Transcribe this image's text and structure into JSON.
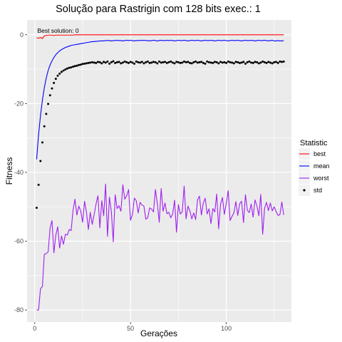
{
  "chart_data": {
    "type": "line",
    "title": "Solução para Rastrigin com 128 bits exec.: 1",
    "xlabel": "Gerações",
    "ylabel": "Fitness",
    "xlim": [
      -4,
      134
    ],
    "ylim": [
      -83.5,
      4.3
    ],
    "x_ticks": [
      0,
      50,
      100
    ],
    "y_ticks": [
      0,
      -20,
      -40,
      -60,
      -80
    ],
    "x_tick_labels": [
      "0",
      "50",
      "100"
    ],
    "y_tick_labels": [
      "0",
      "-20",
      "-40",
      "-60",
      "-80"
    ],
    "grid": true,
    "legend": {
      "title": "Statistic",
      "position": "right"
    },
    "annotation": {
      "text": "Best solution: 0",
      "x": 1,
      "y": 0.6
    },
    "reference_line": {
      "y": 0,
      "style": "dashed",
      "color": "#ffffff"
    },
    "series": [
      {
        "name": "best",
        "color": "#ff0000",
        "kind": "line",
        "x_start": 1,
        "values": [
          -0.9,
          -1.0,
          -0.8,
          -1.1,
          -0.3,
          -0.2,
          -0.1,
          -0.1,
          -0.1,
          -0.2,
          -0.1,
          -0.1,
          -0.1,
          -0.1,
          -0.1,
          -0.1,
          -0.1,
          -0.1,
          -0.1,
          -0.1,
          0,
          0,
          0,
          0,
          0,
          0,
          0,
          0,
          0,
          0,
          0,
          0,
          0,
          0,
          0,
          0,
          0,
          0,
          0,
          0,
          0,
          0,
          0,
          0,
          0,
          0,
          0,
          0,
          0,
          0,
          0,
          0,
          0,
          0,
          0,
          0,
          0,
          0,
          0,
          0,
          0,
          0,
          0,
          0,
          0,
          0,
          0,
          0,
          0,
          0,
          0,
          0,
          0,
          0,
          0,
          0,
          0,
          0,
          0,
          0,
          0,
          0,
          0,
          0,
          0,
          0,
          0,
          0,
          0,
          0,
          0,
          0,
          0,
          0,
          0,
          0,
          0,
          0,
          0,
          0,
          0,
          0,
          0,
          0,
          0,
          0,
          0,
          0,
          0,
          0,
          0,
          0,
          0,
          0,
          0,
          0,
          0,
          0,
          0,
          0,
          0,
          0,
          0,
          0,
          0,
          0,
          0,
          0,
          0,
          0
        ]
      },
      {
        "name": "mean",
        "color": "#0000ff",
        "kind": "line",
        "x_start": 1,
        "values": [
          -36.2,
          -29.1,
          -23.5,
          -19.0,
          -15.4,
          -12.6,
          -10.4,
          -8.8,
          -7.6,
          -6.6,
          -5.8,
          -5.2,
          -4.7,
          -4.3,
          -4.0,
          -3.7,
          -3.5,
          -3.3,
          -3.1,
          -3.0,
          -2.9,
          -2.8,
          -2.7,
          -2.6,
          -2.5,
          -2.4,
          -2.3,
          -2.2,
          -2.1,
          -2.0,
          -2.0,
          -1.9,
          -1.9,
          -1.8,
          -1.8,
          -1.8,
          -1.7,
          -1.7,
          -1.7,
          -1.8,
          -1.7,
          -1.7,
          -1.6,
          -1.7,
          -1.7,
          -1.8,
          -1.7,
          -1.6,
          -1.7,
          -1.6,
          -1.7,
          -1.8,
          -1.7,
          -1.7,
          -1.6,
          -1.7,
          -1.6,
          -1.7,
          -1.7,
          -1.8,
          -1.7,
          -1.6,
          -1.7,
          -1.8,
          -1.7,
          -1.6,
          -1.7,
          -1.7,
          -1.6,
          -1.7,
          -1.6,
          -1.7,
          -1.8,
          -1.7,
          -1.6,
          -1.7,
          -1.7,
          -1.6,
          -1.7,
          -1.8,
          -1.7,
          -1.6,
          -1.7,
          -1.7,
          -1.6,
          -1.7,
          -1.8,
          -1.7,
          -1.6,
          -1.7,
          -1.7,
          -1.6,
          -1.7,
          -1.8,
          -1.7,
          -1.6,
          -1.7,
          -1.7,
          -1.6,
          -1.7,
          -1.8,
          -1.7,
          -1.6,
          -1.7,
          -1.7,
          -1.6,
          -1.7,
          -1.8,
          -1.7,
          -1.6,
          -1.7,
          -1.7,
          -1.6,
          -1.7,
          -1.8,
          -1.7,
          -1.6,
          -1.7,
          -1.7,
          -1.6,
          -1.7,
          -1.8,
          -1.7,
          -1.6,
          -1.8,
          -1.8,
          -1.7,
          -1.8,
          -1.8,
          -1.7
        ]
      },
      {
        "name": "worst",
        "color": "#a020f0",
        "kind": "line",
        "x_start": 1,
        "values": [
          -80.0,
          -80.0,
          -73.8,
          -73.2,
          -63.8,
          -63.6,
          -63.1,
          -56.2,
          -54.0,
          -63.4,
          -58.2,
          -55.8,
          -62.0,
          -58.5,
          -60.9,
          -58.0,
          -58.2,
          -56.6,
          -56.9,
          -51.0,
          -47.8,
          -52.4,
          -49.8,
          -51.2,
          -54.5,
          -48.4,
          -51.5,
          -56.6,
          -51.6,
          -55.1,
          -52.3,
          -49.2,
          -46.8,
          -56.1,
          -48.2,
          -52.6,
          -43.4,
          -58.6,
          -47.2,
          -51.4,
          -60.2,
          -46.5,
          -50.5,
          -49.7,
          -51.3,
          -43.6,
          -47.8,
          -46.8,
          -45.0,
          -53.9,
          -52.3,
          -47.5,
          -48.2,
          -51.8,
          -48.7,
          -49.5,
          -49.8,
          -53.6,
          -53.2,
          -50.3,
          -50.7,
          -51.5,
          -45.0,
          -49.1,
          -54.5,
          -44.7,
          -51.3,
          -48.9,
          -52.0,
          -51.6,
          -53.2,
          -52.1,
          -48.1,
          -57.4,
          -49.4,
          -52.1,
          -51.5,
          -44.0,
          -53.5,
          -49.8,
          -51.2,
          -53.5,
          -51.8,
          -53.7,
          -48.0,
          -46.9,
          -52.4,
          -48.9,
          -47.5,
          -52.1,
          -50.6,
          -54.9,
          -50.5,
          -51.5,
          -46.3,
          -56.4,
          -49.3,
          -47.3,
          -52.2,
          -49.0,
          -45.3,
          -54.0,
          -52.8,
          -51.7,
          -48.5,
          -52.5,
          -49.1,
          -48.4,
          -54.6,
          -46.5,
          -51.0,
          -51.7,
          -49.2,
          -53.0,
          -48.0,
          -49.8,
          -52.6,
          -46.4,
          -58.0,
          -50.4,
          -48.7,
          -51.1,
          -48.9,
          -51.2,
          -50.0,
          -51.4,
          -52.5,
          -52.3,
          -48.6,
          -52.4
        ]
      },
      {
        "name": "std",
        "color": "#000000",
        "kind": "points",
        "x_start": 1,
        "values": [
          -50.3,
          -43.6,
          -36.7,
          -31.3,
          -26.6,
          -23.0,
          -20.1,
          -17.6,
          -15.6,
          -14.0,
          -12.8,
          -11.9,
          -11.3,
          -10.8,
          -10.4,
          -10.1,
          -9.8,
          -9.6,
          -9.5,
          -9.3,
          -9.1,
          -9.0,
          -8.8,
          -8.7,
          -8.5,
          -8.4,
          -8.3,
          -8.2,
          -8.1,
          -8.0,
          -8.1,
          -8.2,
          -7.9,
          -8.0,
          -8.3,
          -7.9,
          -8.1,
          -7.8,
          -8.4,
          -8.0,
          -7.7,
          -8.2,
          -8.0,
          -7.9,
          -8.3,
          -8.1,
          -7.8,
          -8.0,
          -8.2,
          -7.9,
          -8.1,
          -8.4,
          -7.8,
          -8.0,
          -8.1,
          -7.9,
          -8.3,
          -8.0,
          -7.8,
          -8.2,
          -8.1,
          -7.9,
          -8.0,
          -8.3,
          -7.8,
          -8.1,
          -8.0,
          -7.9,
          -8.2,
          -8.0,
          -7.8,
          -8.1,
          -8.3,
          -7.9,
          -8.0,
          -8.2,
          -8.1,
          -7.8,
          -8.0,
          -7.9,
          -8.2,
          -8.3,
          -8.0,
          -7.8,
          -8.1,
          -8.0,
          -7.9,
          -8.2,
          -8.4,
          -7.8,
          -8.0,
          -8.1,
          -8.2,
          -7.9,
          -8.0,
          -8.3,
          -7.9,
          -8.1,
          -8.0,
          -8.2,
          -7.8,
          -8.0,
          -8.1,
          -8.3,
          -7.9,
          -8.0,
          -8.2,
          -8.1,
          -7.9,
          -8.4,
          -8.0,
          -7.8,
          -8.1,
          -8.2,
          -7.9,
          -8.0,
          -8.3,
          -8.1,
          -7.8,
          -8.0,
          -8.2,
          -7.9,
          -8.1,
          -8.3,
          -8.0,
          -7.9,
          -8.2,
          -7.8,
          -7.9,
          -7.8
        ]
      }
    ]
  }
}
